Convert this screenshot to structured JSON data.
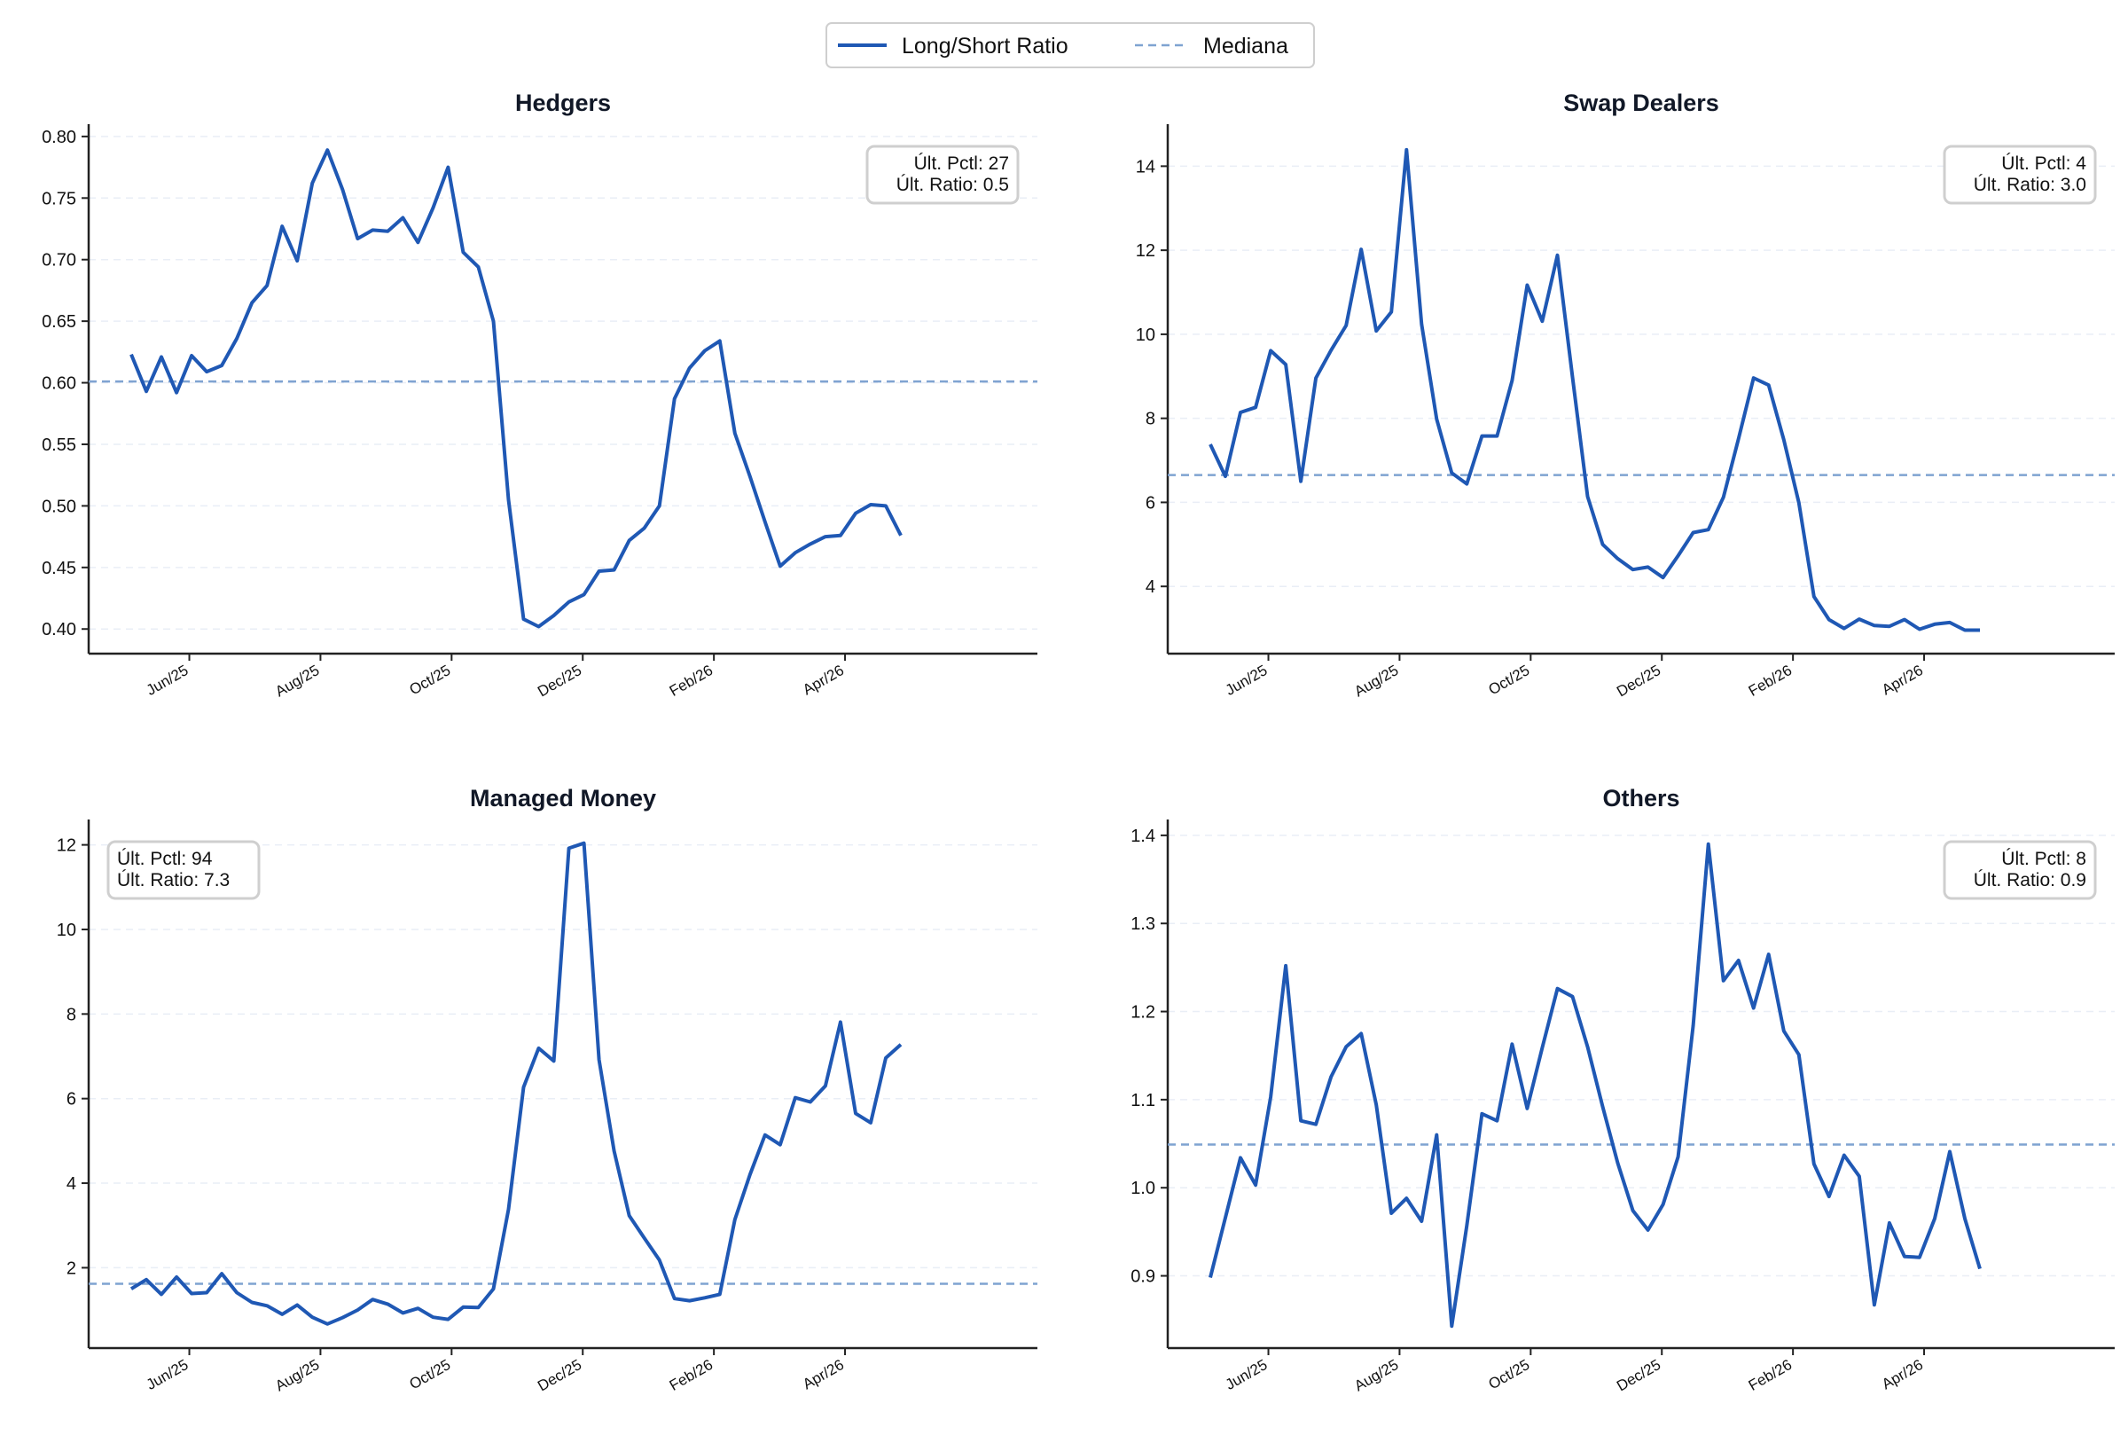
{
  "legend": {
    "series_label": "Long/Short Ratio",
    "median_label": "Mediana"
  },
  "colors": {
    "line": "#1f58b4",
    "median": "#7fa3d1",
    "grid": "#e9eef6",
    "axis": "#222222",
    "box_edge": "#cfcfcf"
  },
  "chart_data": [
    {
      "type": "line",
      "title": "Hedgers",
      "xlabel": "",
      "ylabel": "",
      "x_tick_labels": [
        "Jun/25",
        "Aug/25",
        "Oct/25",
        "Dec/25",
        "Feb/26",
        "Apr/26"
      ],
      "ylim": [
        0.38,
        0.81
      ],
      "y_ticks": [
        0.4,
        0.45,
        0.5,
        0.55,
        0.6,
        0.65,
        0.7,
        0.75,
        0.8
      ],
      "y_tick_decimals": 2,
      "grid": "y",
      "median": 0.601,
      "annotation": [
        "Últ. Pctl: 27",
        "Últ. Ratio: 0.5"
      ],
      "annotation_position": "top-right",
      "values": [
        0.623,
        0.593,
        0.621,
        0.592,
        0.622,
        0.609,
        0.614,
        0.636,
        0.665,
        0.679,
        0.727,
        0.699,
        0.762,
        0.789,
        0.757,
        0.717,
        0.724,
        0.723,
        0.734,
        0.714,
        0.742,
        0.775,
        0.706,
        0.694,
        0.65,
        0.505,
        0.408,
        0.402,
        0.411,
        0.422,
        0.428,
        0.447,
        0.448,
        0.472,
        0.482,
        0.5,
        0.587,
        0.612,
        0.626,
        0.634,
        0.559,
        0.524,
        0.487,
        0.451,
        0.462,
        0.469,
        0.475,
        0.476,
        0.494,
        0.501,
        0.5,
        0.476
      ]
    },
    {
      "type": "line",
      "title": "Swap Dealers",
      "xlabel": "",
      "ylabel": "",
      "x_tick_labels": [
        "Jun/25",
        "Aug/25",
        "Oct/25",
        "Dec/25",
        "Feb/26",
        "Apr/26"
      ],
      "ylim": [
        2.4,
        15.0
      ],
      "y_ticks": [
        4,
        6,
        8,
        10,
        12,
        14
      ],
      "y_tick_decimals": 0,
      "grid": "y",
      "median": 6.65,
      "annotation": [
        "Últ. Pctl: 4",
        "Últ. Ratio: 3.0"
      ],
      "annotation_position": "top-right",
      "values": [
        7.38,
        6.62,
        8.14,
        8.26,
        9.61,
        9.28,
        6.5,
        8.96,
        9.62,
        10.21,
        12.02,
        10.08,
        10.53,
        14.39,
        10.24,
        7.98,
        6.7,
        6.44,
        7.58,
        7.58,
        8.9,
        11.17,
        10.31,
        11.88,
        8.98,
        6.14,
        5.0,
        4.66,
        4.4,
        4.46,
        4.21,
        4.73,
        5.28,
        5.35,
        6.12,
        7.51,
        8.96,
        8.79,
        7.49,
        5.99,
        3.76,
        3.21,
        3.0,
        3.22,
        3.07,
        3.05,
        3.21,
        2.98,
        3.1,
        3.14,
        2.96,
        2.96
      ]
    },
    {
      "type": "line",
      "title": "Managed Money",
      "xlabel": "",
      "ylabel": "",
      "x_tick_labels": [
        "Jun/25",
        "Aug/25",
        "Oct/25",
        "Dec/25",
        "Feb/26",
        "Apr/26"
      ],
      "ylim": [
        0.1,
        12.6
      ],
      "y_ticks": [
        2,
        4,
        6,
        8,
        10,
        12
      ],
      "y_tick_decimals": 0,
      "grid": "y",
      "median": 1.62,
      "annotation": [
        "Últ. Pctl: 94",
        "Últ. Ratio: 7.3"
      ],
      "annotation_position": "top-left",
      "values": [
        1.5,
        1.72,
        1.37,
        1.78,
        1.39,
        1.41,
        1.86,
        1.41,
        1.18,
        1.1,
        0.9,
        1.12,
        0.83,
        0.67,
        0.82,
        1.0,
        1.25,
        1.14,
        0.93,
        1.04,
        0.83,
        0.78,
        1.07,
        1.06,
        1.5,
        3.38,
        6.27,
        7.19,
        6.89,
        11.92,
        12.04,
        6.92,
        4.76,
        3.23,
        2.7,
        2.18,
        1.27,
        1.22,
        1.29,
        1.37,
        3.14,
        4.2,
        5.14,
        4.91,
        6.02,
        5.92,
        6.3,
        7.81,
        5.65,
        5.43,
        6.96,
        7.28
      ]
    },
    {
      "type": "line",
      "title": "Others",
      "xlabel": "",
      "ylabel": "",
      "x_tick_labels": [
        "Jun/25",
        "Aug/25",
        "Oct/25",
        "Dec/25",
        "Feb/26",
        "Apr/26"
      ],
      "ylim": [
        0.818,
        1.418
      ],
      "y_ticks": [
        0.9,
        1.0,
        1.1,
        1.2,
        1.3,
        1.4
      ],
      "y_tick_decimals": 1,
      "grid": "y",
      "median": 1.049,
      "annotation": [
        "Últ. Pctl: 8",
        "Últ. Ratio: 0.9"
      ],
      "annotation_position": "top-right",
      "values": [
        0.898,
        0.966,
        1.034,
        1.003,
        1.103,
        1.252,
        1.076,
        1.072,
        1.126,
        1.16,
        1.175,
        1.094,
        0.971,
        0.988,
        0.962,
        1.06,
        0.843,
        0.957,
        1.084,
        1.076,
        1.163,
        1.09,
        1.159,
        1.226,
        1.217,
        1.16,
        1.092,
        1.028,
        0.974,
        0.952,
        0.981,
        1.035,
        1.184,
        1.39,
        1.235,
        1.258,
        1.204,
        1.265,
        1.178,
        1.151,
        1.027,
        0.99,
        1.037,
        1.013,
        0.867,
        0.96,
        0.922,
        0.921,
        0.965,
        1.041,
        0.965,
        0.908
      ]
    }
  ]
}
